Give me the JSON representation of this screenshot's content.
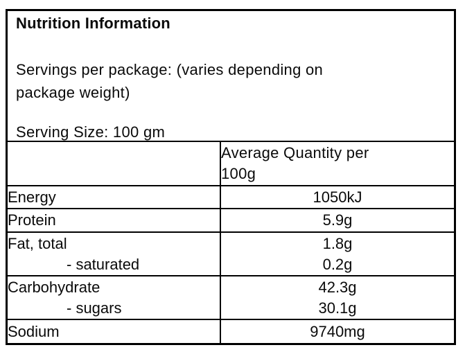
{
  "panel": {
    "title": "Nutrition Information",
    "servings_line_1": "Servings per package: (varies depending on",
    "servings_line_2": "package weight)",
    "serving_size": "Serving Size: 100 gm"
  },
  "table": {
    "header": {
      "label": "",
      "quantity_line_1": "Average Quantity per",
      "quantity_line_2": "100g"
    },
    "rows": [
      {
        "label": "Energy",
        "value": "1050kJ"
      },
      {
        "label": "Protein",
        "value": "5.9g"
      },
      {
        "label": "Fat, total",
        "sub_label": "- saturated",
        "value": "1.8g",
        "sub_value": "0.2g"
      },
      {
        "label": "Carbohydrate",
        "sub_label": "- sugars",
        "value": "42.3g",
        "sub_value": "30.1g"
      },
      {
        "label": "Sodium",
        "value": "9740mg"
      }
    ]
  },
  "colors": {
    "border": "#000000",
    "text": "#0a0a0a",
    "background": "#ffffff"
  }
}
